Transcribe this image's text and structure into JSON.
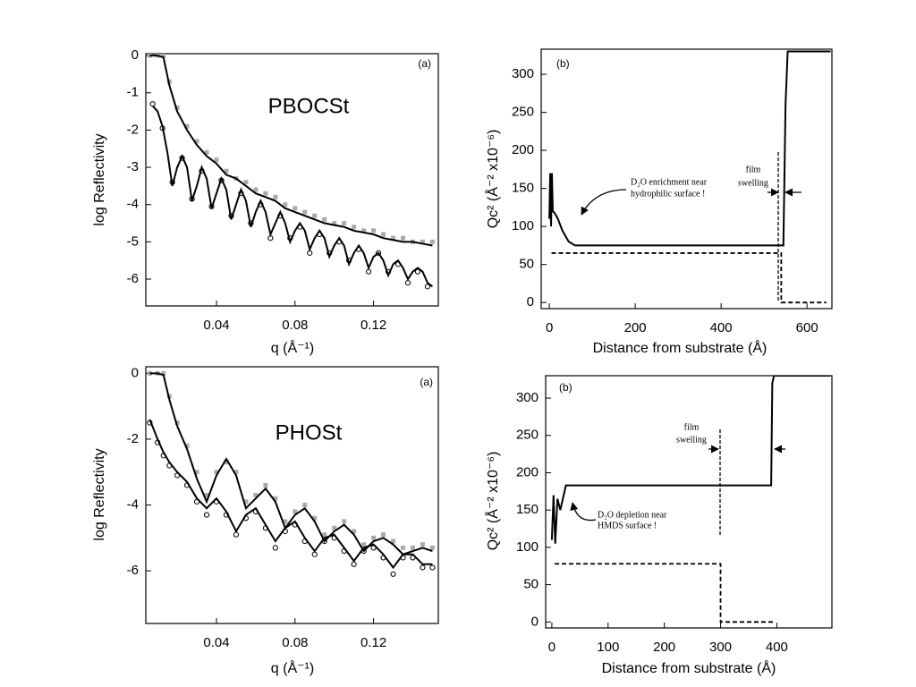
{
  "chart_data": [
    {
      "type": "line",
      "x_label": "q (Å⁻¹)",
      "y_label": "log Reflectivity",
      "xlim": [
        0.004,
        0.153
      ],
      "ylim": [
        -6.72,
        0.05
      ],
      "xticks": [
        0.04,
        0.08,
        0.12
      ],
      "yticks": [
        0,
        -1,
        -2,
        -3,
        -4,
        -5,
        -6
      ],
      "annotations": [
        {
          "text": "(a)",
          "color": "#000000"
        },
        {
          "text": "PBOCSt",
          "color": "#3b3b9c"
        }
      ],
      "series": [
        {
          "style": "markers",
          "marker": "square",
          "color": "#aaaaaa",
          "x": [
            0.006,
            0.01,
            0.013,
            0.016,
            0.02,
            0.025,
            0.03,
            0.035,
            0.04,
            0.045,
            0.05,
            0.055,
            0.06,
            0.065,
            0.07,
            0.075,
            0.08,
            0.085,
            0.09,
            0.095,
            0.1,
            0.105,
            0.11,
            0.115,
            0.12,
            0.125,
            0.13,
            0.135,
            0.14,
            0.145,
            0.15
          ],
          "values": [
            0,
            0,
            0,
            -0.7,
            -1.4,
            -1.9,
            -2.3,
            -2.6,
            -2.8,
            -3.1,
            -3.3,
            -3.4,
            -3.6,
            -3.7,
            -3.8,
            -4.0,
            -4.1,
            -4.2,
            -4.3,
            -4.4,
            -4.5,
            -4.5,
            -4.6,
            -4.7,
            -4.7,
            -4.8,
            -4.9,
            -4.9,
            -5.0,
            -5.0,
            -5.0
          ]
        },
        {
          "style": "line",
          "color": "#000000",
          "x": [
            0.006,
            0.01,
            0.013,
            0.016,
            0.02,
            0.025,
            0.03,
            0.035,
            0.04,
            0.045,
            0.05,
            0.055,
            0.06,
            0.065,
            0.07,
            0.075,
            0.08,
            0.085,
            0.09,
            0.095,
            0.1,
            0.105,
            0.11,
            0.115,
            0.12,
            0.125,
            0.13,
            0.135,
            0.14,
            0.145,
            0.15
          ],
          "values": [
            0,
            0,
            -0.05,
            -0.8,
            -1.5,
            -2.0,
            -2.4,
            -2.7,
            -2.9,
            -3.2,
            -3.3,
            -3.5,
            -3.7,
            -3.8,
            -3.9,
            -4.1,
            -4.2,
            -4.3,
            -4.4,
            -4.5,
            -4.55,
            -4.6,
            -4.7,
            -4.75,
            -4.8,
            -4.9,
            -4.95,
            -5.0,
            -5.0,
            -5.05,
            -5.1
          ]
        },
        {
          "style": "markers",
          "marker": "circle",
          "color": "#000000",
          "x": [
            0.0075,
            0.0125,
            0.0175,
            0.0225,
            0.0275,
            0.0325,
            0.0375,
            0.0425,
            0.0475,
            0.0525,
            0.0575,
            0.0625,
            0.0675,
            0.0725,
            0.0775,
            0.0825,
            0.0875,
            0.0925,
            0.0975,
            0.1025,
            0.1075,
            0.1125,
            0.1175,
            0.1225,
            0.1275,
            0.1325,
            0.1375,
            0.1425,
            0.1475
          ],
          "values": [
            -1.3,
            -1.95,
            -3.4,
            -2.75,
            -3.85,
            -3.1,
            -4.05,
            -3.35,
            -4.3,
            -3.7,
            -4.5,
            -4.0,
            -4.9,
            -4.3,
            -4.9,
            -4.6,
            -5.3,
            -4.8,
            -5.3,
            -5.0,
            -5.5,
            -5.2,
            -5.8,
            -5.3,
            -5.8,
            -5.6,
            -6.1,
            -5.8,
            -6.2
          ]
        },
        {
          "style": "line",
          "color": "#000000",
          "x": [
            0.0075,
            0.01,
            0.0125,
            0.015,
            0.0175,
            0.02,
            0.0225,
            0.025,
            0.0275,
            0.03,
            0.0325,
            0.035,
            0.0375,
            0.04,
            0.0425,
            0.045,
            0.0475,
            0.05,
            0.0525,
            0.055,
            0.0575,
            0.06,
            0.0625,
            0.065,
            0.0675,
            0.07,
            0.0725,
            0.075,
            0.0775,
            0.08,
            0.0825,
            0.085,
            0.0875,
            0.09,
            0.0925,
            0.095,
            0.0975,
            0.1,
            0.1025,
            0.105,
            0.1075,
            0.11,
            0.1125,
            0.115,
            0.1175,
            0.12,
            0.1225,
            0.125,
            0.1275,
            0.13,
            0.1325,
            0.135,
            0.1375,
            0.14,
            0.1425,
            0.145,
            0.1475,
            0.15
          ],
          "values": [
            -1.35,
            -1.5,
            -1.9,
            -2.6,
            -3.5,
            -3.0,
            -2.7,
            -3.0,
            -3.9,
            -3.5,
            -3.0,
            -3.3,
            -4.1,
            -3.7,
            -3.3,
            -3.6,
            -4.4,
            -4.0,
            -3.6,
            -3.9,
            -4.6,
            -4.2,
            -3.9,
            -4.2,
            -4.8,
            -4.5,
            -4.2,
            -4.5,
            -5.0,
            -4.7,
            -4.5,
            -4.7,
            -5.2,
            -4.9,
            -4.7,
            -4.9,
            -5.4,
            -5.1,
            -4.9,
            -5.1,
            -5.6,
            -5.3,
            -5.1,
            -5.3,
            -5.7,
            -5.4,
            -5.3,
            -5.5,
            -5.9,
            -5.6,
            -5.5,
            -5.7,
            -6.0,
            -5.8,
            -5.7,
            -5.8,
            -6.1,
            -6.2
          ]
        }
      ]
    },
    {
      "type": "line",
      "x_label": "Distance from substrate (Å)",
      "y_label": "Qc² (Å⁻² x10⁻⁶)",
      "xlim": [
        -19,
        658
      ],
      "ylim": [
        -8,
        333
      ],
      "xticks": [
        0,
        200,
        400,
        600
      ],
      "yticks": [
        0,
        50,
        100,
        150,
        200,
        250,
        300
      ],
      "annotations": [
        {
          "text": "(b)",
          "color": "#000000"
        },
        {
          "text": "D₂O enrichment near",
          "color": "#000000"
        },
        {
          "text": "hydrophilic surface !",
          "color": "#000000"
        },
        {
          "text": "film",
          "color": "#000000"
        },
        {
          "text": "swelling",
          "color": "#000000"
        }
      ],
      "series": [
        {
          "style": "line",
          "color": "#000000",
          "x": [
            0,
            2,
            4,
            6,
            8,
            12,
            20,
            30,
            45,
            60,
            545,
            550,
            555,
            655
          ],
          "values": [
            110,
            170,
            100,
            170,
            120,
            118,
            110,
            95,
            80,
            75,
            75,
            260,
            330,
            330
          ]
        },
        {
          "style": "dashed",
          "color": "#000000",
          "x": [
            5,
            540,
            540,
            645
          ],
          "values": [
            65,
            65,
            0,
            0
          ]
        }
      ]
    },
    {
      "type": "line",
      "x_label": "q (Å⁻¹)",
      "y_label": "log Reflectivity",
      "xlim": [
        0.004,
        0.153
      ],
      "ylim": [
        -7.6,
        0.2
      ],
      "xticks": [
        0.04,
        0.08,
        0.12
      ],
      "yticks": [
        0,
        -2,
        -4,
        -6
      ],
      "annotations": [
        {
          "text": "(a)",
          "color": "#000000"
        },
        {
          "text": "PHOSt",
          "color": "#3b3b9c"
        }
      ],
      "series": [
        {
          "style": "markers",
          "marker": "square",
          "color": "#aaaaaa",
          "x": [
            0.006,
            0.01,
            0.013,
            0.016,
            0.02,
            0.025,
            0.03,
            0.035,
            0.04,
            0.045,
            0.05,
            0.055,
            0.06,
            0.065,
            0.07,
            0.075,
            0.08,
            0.085,
            0.09,
            0.095,
            0.1,
            0.105,
            0.11,
            0.115,
            0.12,
            0.125,
            0.13,
            0.135,
            0.14,
            0.145,
            0.15
          ],
          "values": [
            0,
            0,
            0,
            -0.7,
            -1.5,
            -2.2,
            -3.0,
            -3.7,
            -3.0,
            -2.7,
            -3.0,
            -3.9,
            -3.7,
            -3.4,
            -3.8,
            -4.5,
            -4.2,
            -4.0,
            -4.4,
            -4.9,
            -4.7,
            -4.5,
            -4.8,
            -5.2,
            -5.0,
            -4.9,
            -5.1,
            -5.3,
            -5.3,
            -5.2,
            -5.3
          ]
        },
        {
          "style": "line",
          "color": "#000000",
          "x": [
            0.006,
            0.01,
            0.013,
            0.016,
            0.02,
            0.025,
            0.03,
            0.035,
            0.04,
            0.045,
            0.05,
            0.055,
            0.06,
            0.065,
            0.07,
            0.075,
            0.08,
            0.085,
            0.09,
            0.095,
            0.1,
            0.105,
            0.11,
            0.115,
            0.12,
            0.125,
            0.13,
            0.135,
            0.14,
            0.145,
            0.15
          ],
          "values": [
            0,
            0,
            -0.05,
            -0.8,
            -1.6,
            -2.3,
            -3.2,
            -3.9,
            -3.1,
            -2.6,
            -3.1,
            -4.1,
            -3.8,
            -3.5,
            -3.9,
            -4.7,
            -4.3,
            -4.1,
            -4.5,
            -5.1,
            -4.8,
            -4.6,
            -4.9,
            -5.4,
            -5.1,
            -5.0,
            -5.2,
            -5.5,
            -5.4,
            -5.3,
            -5.4
          ]
        },
        {
          "style": "markers",
          "marker": "circle",
          "color": "#000000",
          "x": [
            0.006,
            0.01,
            0.013,
            0.016,
            0.02,
            0.025,
            0.03,
            0.035,
            0.04,
            0.045,
            0.05,
            0.055,
            0.06,
            0.065,
            0.07,
            0.075,
            0.08,
            0.085,
            0.09,
            0.095,
            0.1,
            0.105,
            0.11,
            0.115,
            0.12,
            0.125,
            0.13,
            0.135,
            0.14,
            0.145,
            0.15
          ],
          "values": [
            -1.5,
            -2.1,
            -2.5,
            -2.8,
            -3.1,
            -3.4,
            -3.9,
            -4.3,
            -3.9,
            -4.3,
            -4.9,
            -4.4,
            -4.2,
            -4.7,
            -5.3,
            -4.8,
            -4.6,
            -5.1,
            -5.5,
            -5.1,
            -5.0,
            -5.4,
            -5.8,
            -5.4,
            -5.3,
            -5.6,
            -6.1,
            -5.6,
            -5.6,
            -5.9,
            -5.9
          ]
        },
        {
          "style": "line",
          "color": "#000000",
          "x": [
            0.006,
            0.01,
            0.013,
            0.016,
            0.02,
            0.025,
            0.03,
            0.035,
            0.04,
            0.045,
            0.05,
            0.055,
            0.06,
            0.065,
            0.07,
            0.075,
            0.08,
            0.085,
            0.09,
            0.095,
            0.1,
            0.105,
            0.11,
            0.115,
            0.12,
            0.125,
            0.13,
            0.135,
            0.14,
            0.145,
            0.15
          ],
          "values": [
            -1.4,
            -2.0,
            -2.4,
            -2.7,
            -3.0,
            -3.3,
            -3.8,
            -4.1,
            -3.8,
            -4.2,
            -4.8,
            -4.3,
            -4.1,
            -4.6,
            -5.1,
            -4.7,
            -4.5,
            -5.0,
            -5.4,
            -5.0,
            -4.9,
            -5.3,
            -5.7,
            -5.3,
            -5.2,
            -5.5,
            -5.9,
            -5.5,
            -5.5,
            -5.8,
            -5.8
          ]
        }
      ]
    },
    {
      "type": "line",
      "x_label": "Distance from substrate (Å)",
      "y_label": "Qc² (Å⁻² x10⁻⁶)",
      "xlim": [
        -11,
        498
      ],
      "ylim": [
        -8,
        330
      ],
      "xticks": [
        0,
        100,
        200,
        300,
        400
      ],
      "yticks": [
        0,
        50,
        100,
        150,
        200,
        250,
        300
      ],
      "annotations": [
        {
          "text": "(b)",
          "color": "#000000"
        },
        {
          "text": "film",
          "color": "#000000"
        },
        {
          "text": "swelling",
          "color": "#000000"
        },
        {
          "text": "D₂O depletion near",
          "color": "#000000"
        },
        {
          "text": "HMDS surface !",
          "color": "#000000"
        }
      ],
      "series": [
        {
          "style": "line",
          "color": "#000000",
          "x": [
            0,
            3,
            6,
            10,
            15,
            25,
            390,
            392,
            395,
            495
          ],
          "values": [
            110,
            170,
            105,
            165,
            150,
            183,
            183,
            320,
            330,
            330
          ]
        },
        {
          "style": "dashed",
          "color": "#000000",
          "x": [
            5,
            300,
            300,
            395
          ],
          "values": [
            78,
            78,
            0,
            0
          ]
        }
      ]
    }
  ]
}
